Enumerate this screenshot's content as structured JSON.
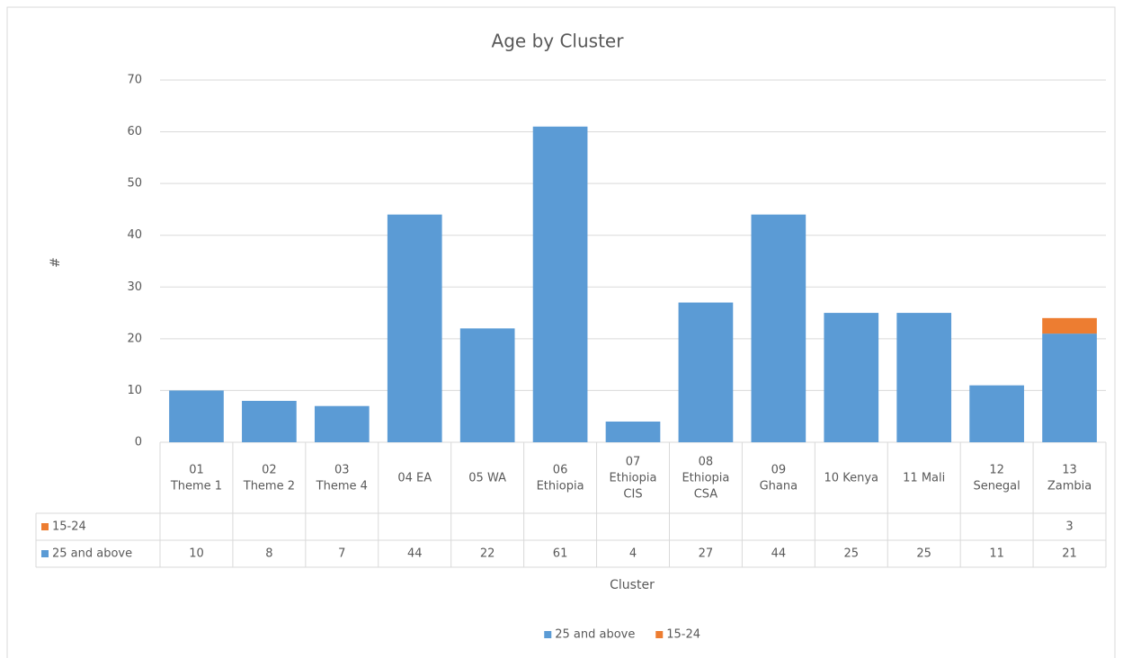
{
  "chart_data": {
    "type": "bar",
    "stacked": true,
    "title": "Age by Cluster",
    "x_label": "Cluster",
    "y_label": "#",
    "categories": [
      "01\nTheme 1",
      "02\nTheme 2",
      "03\nTheme 4",
      "04 EA",
      "05 WA",
      "06\nEthiopia",
      "07\nEthiopia\nCIS",
      "08\nEthiopia\nCSA",
      "09\nGhana",
      "10 Kenya",
      "11 Mali",
      "12\nSenegal",
      "13\nZambia"
    ],
    "series": [
      {
        "name": "25 and above",
        "color": "#5b9bd5",
        "values": [
          10,
          8,
          7,
          44,
          22,
          61,
          4,
          27,
          44,
          25,
          25,
          11,
          21
        ]
      },
      {
        "name": "15-24",
        "color": "#ed7d31",
        "values": [
          null,
          null,
          null,
          null,
          null,
          null,
          null,
          null,
          null,
          null,
          null,
          null,
          3
        ]
      }
    ],
    "ylim": [
      0,
      70
    ],
    "yticks": [
      0,
      10,
      20,
      30,
      40,
      50,
      60,
      70
    ],
    "grid": true,
    "legend": "bottom",
    "data_table": true
  }
}
